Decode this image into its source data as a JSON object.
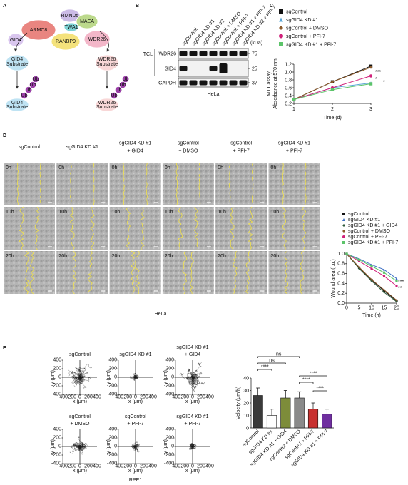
{
  "panel_labels": [
    "A",
    "B",
    "C",
    "D",
    "E"
  ],
  "diagram": {
    "subunits": [
      "RMND5",
      "MAEA",
      "ARMC8",
      "TWA1",
      "GID4",
      "RANBP9",
      "WDR26"
    ],
    "substrates": [
      [
        "GID4",
        "Substrate"
      ],
      [
        "WDR26",
        "Substrate"
      ]
    ],
    "ubiquitin": "Ub"
  },
  "blot": {
    "lanes": [
      "sgControl",
      "sgGID4 KD #1",
      "sgGID4 KD #2",
      "sgControl + DMSO",
      "sgControl + PFI-7",
      "sgGID4 KD #1 + PFI-7",
      "sgGID4 KD #2 + PFI-7"
    ],
    "unit": "(kDa)",
    "group": "TCL",
    "proteins": [
      "WDR26",
      "GID4",
      "GAPDH"
    ],
    "markers": [
      75,
      25,
      37
    ],
    "cell_line": "HeLa"
  },
  "wound_assay": {
    "conditions": [
      [
        "sgControl"
      ],
      [
        "sgGID4 KD #1"
      ],
      [
        "sgGID4 KD #1",
        "+ GID4"
      ],
      [
        "sgControl",
        "+ DMSO"
      ],
      [
        "sgControl",
        "+ PFI-7"
      ],
      [
        "sgGID4 KD #1",
        "+ PFI-7"
      ]
    ],
    "times": [
      "0h",
      "10h",
      "20h"
    ],
    "cell_line": "HeLa"
  },
  "tracking": {
    "conditions": [
      [
        "sgControl"
      ],
      [
        "sgGID4 KD #1"
      ],
      [
        "sgGID4 KD #1",
        "+ GID4"
      ],
      [
        "sgControl",
        "+ DMSO"
      ],
      [
        "sgControl",
        "+ PFI-7"
      ],
      [
        "sgGID4 KD #1",
        "+ PFI-7"
      ]
    ],
    "xlabel": "x (μm)",
    "ylabel": "y (μm)",
    "xticks": [
      -400,
      -200,
      0,
      200,
      400
    ],
    "yticks": [
      -400,
      -200,
      0,
      200,
      400
    ],
    "cell_line": "RPE1"
  },
  "chart_data": [
    {
      "type": "line",
      "ylabel": [
        "MTT assay",
        "Absorbance at 570 nm"
      ],
      "xlabel": "Time (d)",
      "x": [
        1,
        2,
        3
      ],
      "xlim": [
        1,
        3
      ],
      "xticks": [
        1,
        2,
        3
      ],
      "ylim": [
        0.2,
        1.2
      ],
      "yticks": [
        0.2,
        0.4,
        0.6,
        0.8,
        {
          "value": 1,
          "label": "1.0"
        },
        1.2
      ],
      "series": [
        {
          "name": "sgControl",
          "color": "#111111",
          "marker": "square",
          "values": [
            0.3,
            0.75,
            1.15
          ]
        },
        {
          "name": "sgGID4 KD #1",
          "color": "#5aa6d6",
          "marker": "triangle",
          "values": [
            0.3,
            0.6,
            0.72
          ]
        },
        {
          "name": "sgControl + DMSO",
          "color": "#8b5a2b",
          "marker": "diamond",
          "values": [
            0.3,
            0.75,
            1.12
          ]
        },
        {
          "name": "sgControl + PFI-7",
          "color": "#d0207a",
          "marker": "circle",
          "values": [
            0.3,
            0.6,
            0.9
          ]
        },
        {
          "name": "sgGID4 KD #1 + PFI-7",
          "color": "#5cc46a",
          "marker": "square",
          "values": [
            0.3,
            0.55,
            0.7
          ]
        }
      ],
      "annotations": [
        "***",
        "*",
        "*"
      ]
    },
    {
      "type": "line",
      "ylabel": "Wound area (r.u.)",
      "xlabel": "Time (h)",
      "x": [
        0,
        5,
        10,
        15,
        20
      ],
      "xlim": [
        0,
        20
      ],
      "xticks": [
        0,
        5,
        10,
        15,
        20
      ],
      "ylim": [
        0,
        1
      ],
      "yticks": [
        {
          "value": 0,
          "label": "0.0"
        },
        0.2,
        0.4,
        0.6,
        0.8,
        {
          "value": 1,
          "label": "1.0"
        }
      ],
      "series": [
        {
          "name": "sgControl",
          "color": "#111111",
          "marker": "square",
          "values": [
            1,
            0.72,
            0.47,
            0.25,
            0.05
          ]
        },
        {
          "name": "sgGID4 KD #1",
          "color": "#3d6fc4",
          "marker": "triangle",
          "values": [
            1,
            0.9,
            0.78,
            0.68,
            0.5
          ]
        },
        {
          "name": "sgGID4 KD #1 + GID4",
          "color": "#2f5a3a",
          "marker": "diamond",
          "values": [
            1,
            0.7,
            0.45,
            0.22,
            0.03
          ]
        },
        {
          "name": "sgControl + DMSO",
          "color": "#8b5a2b",
          "marker": "diamond",
          "values": [
            1,
            0.73,
            0.48,
            0.27,
            0.06
          ]
        },
        {
          "name": "sgControl + PFI-7",
          "color": "#d0207a",
          "marker": "circle",
          "values": [
            1,
            0.85,
            0.7,
            0.55,
            0.35
          ]
        },
        {
          "name": "sgGID4 KD #1 + PFI-7",
          "color": "#5cc46a",
          "marker": "square",
          "values": [
            1,
            0.88,
            0.75,
            0.62,
            0.45
          ]
        }
      ],
      "annotations": [
        "***",
        "**"
      ]
    },
    {
      "type": "bar",
      "ylabel": "Velocity (μm/h)",
      "categories": [
        "sgControl",
        "sgGID4 KD #1",
        "sgGID4 KD #1 + GID4",
        "sgControl + DMSO",
        "sgControl + PFI-7",
        "sgGID4 KD #1 + PFI-7"
      ],
      "values": [
        26,
        10,
        24,
        24,
        15,
        11
      ],
      "errors": [
        6,
        5,
        6,
        5,
        5,
        4
      ],
      "colors": [
        "#3a3a3a",
        "#ffffff",
        "#7d8c3a",
        "#8a8a8a",
        "#c8302f",
        "#6f2f9f"
      ],
      "ylim": [
        0,
        40
      ],
      "yticks": [
        0,
        10,
        20,
        30,
        40
      ],
      "significance": [
        "ns",
        "ns",
        "****",
        "****",
        "****",
        "****"
      ]
    }
  ]
}
